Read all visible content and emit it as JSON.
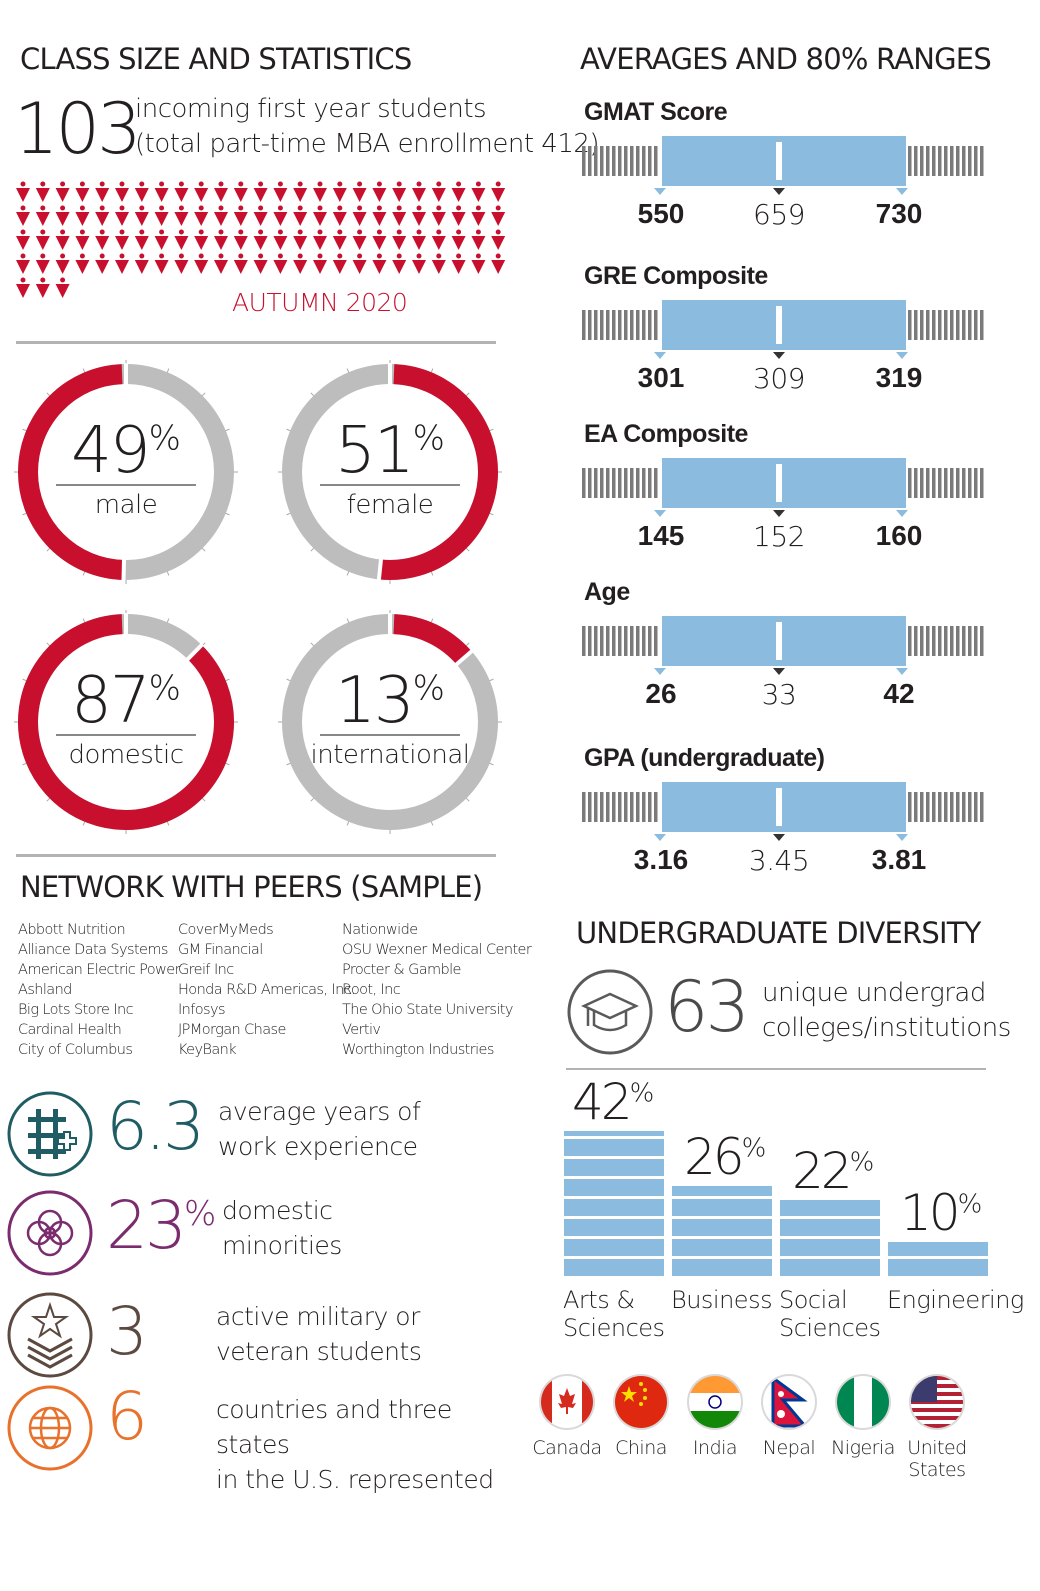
{
  "class_stats": {
    "title": "CLASS SIZE AND STATISTICS",
    "count": "103",
    "count_desc_1": "incoming first year students",
    "count_desc_2": "(total part-time MBA enrollment 412)",
    "term": "AUTUMN 2020",
    "accent_color": "#c8102e"
  },
  "donuts": [
    {
      "value": 49,
      "pct_num": "49",
      "pct_sign": "%",
      "label": "male",
      "start": "left"
    },
    {
      "value": 51,
      "pct_num": "51",
      "pct_sign": "%",
      "label": "female",
      "start": "right"
    },
    {
      "value": 87,
      "pct_num": "87",
      "pct_sign": "%",
      "label": "domestic",
      "start": "left"
    },
    {
      "value": 13,
      "pct_num": "13",
      "pct_sign": "%",
      "label": "international",
      "start": "right"
    }
  ],
  "network": {
    "title": "NETWORK WITH PEERS (SAMPLE)",
    "col1": [
      "Abbott Nutrition",
      "Alliance Data Systems",
      "American Electric Power",
      "Ashland",
      "Big Lots Store Inc",
      "Cardinal Health",
      "City of Columbus"
    ],
    "col2": [
      "CoverMyMeds",
      "GM Financial",
      "Greif Inc",
      "Honda R&D Americas, Inc.",
      "Infosys",
      "JPMorgan Chase",
      "KeyBank"
    ],
    "col3": [
      "Nationwide",
      "OSU Wexner Medical Center",
      "Procter & Gamble",
      "Root, Inc",
      "The Ohio State University",
      "Vertiv",
      "Worthington Industries"
    ]
  },
  "facts": [
    {
      "icon": "work-experience-icon",
      "value": "6.3",
      "suffix": "",
      "line1": "average years of",
      "line2": "work experience",
      "color": "#1f5c63"
    },
    {
      "icon": "diversity-icon",
      "value": "23",
      "suffix": "%",
      "line1": "domestic",
      "line2": "minorities",
      "color": "#7b2c6e"
    },
    {
      "icon": "military-star-icon",
      "value": "3",
      "suffix": "",
      "line1": "active military or",
      "line2": "veteran students",
      "color": "#5c4a40"
    },
    {
      "icon": "globe-icon",
      "value": "6",
      "suffix": "",
      "line1": "countries and three states",
      "line2": "in the U.S. represented",
      "color": "#e8712b"
    }
  ],
  "ranges": {
    "title": "AVERAGES AND 80% RANGES",
    "bar_color": "#8bbce0",
    "items": [
      {
        "label": "GMAT Score",
        "low": "550",
        "avg": "659",
        "high": "730"
      },
      {
        "label": "GRE Composite",
        "low": "301",
        "avg": "309",
        "high": "319"
      },
      {
        "label": "EA Composite",
        "low": "145",
        "avg": "152",
        "high": "160"
      },
      {
        "label": "Age",
        "low": "26",
        "avg": "33",
        "high": "42"
      },
      {
        "label": "GPA (undergraduate)",
        "low": "3.16",
        "avg": "3.45",
        "high": "3.81"
      }
    ]
  },
  "diversity": {
    "title": "UNDERGRADUATE DIVERSITY",
    "count": "63",
    "line1": "unique undergrad",
    "line2": "colleges/institutions",
    "bar_color": "#8bbce0"
  },
  "chart_data": {
    "type": "bar",
    "categories": [
      "Arts & Sciences",
      "Business",
      "Social Sciences",
      "Engineering"
    ],
    "category_lines": [
      [
        "Arts &",
        "Sciences"
      ],
      [
        "Business",
        ""
      ],
      [
        "Social",
        "Sciences"
      ],
      [
        "Engineering",
        ""
      ]
    ],
    "values": [
      42,
      26,
      22,
      10
    ],
    "unit": "%"
  },
  "countries": [
    "Canada",
    "China",
    "India",
    "Nepal",
    "Nigeria",
    "United States"
  ],
  "country_lines": [
    [
      "Canada",
      ""
    ],
    [
      "China",
      ""
    ],
    [
      "India",
      ""
    ],
    [
      "Nepal",
      ""
    ],
    [
      "Nigeria",
      ""
    ],
    [
      "United",
      "States"
    ]
  ]
}
